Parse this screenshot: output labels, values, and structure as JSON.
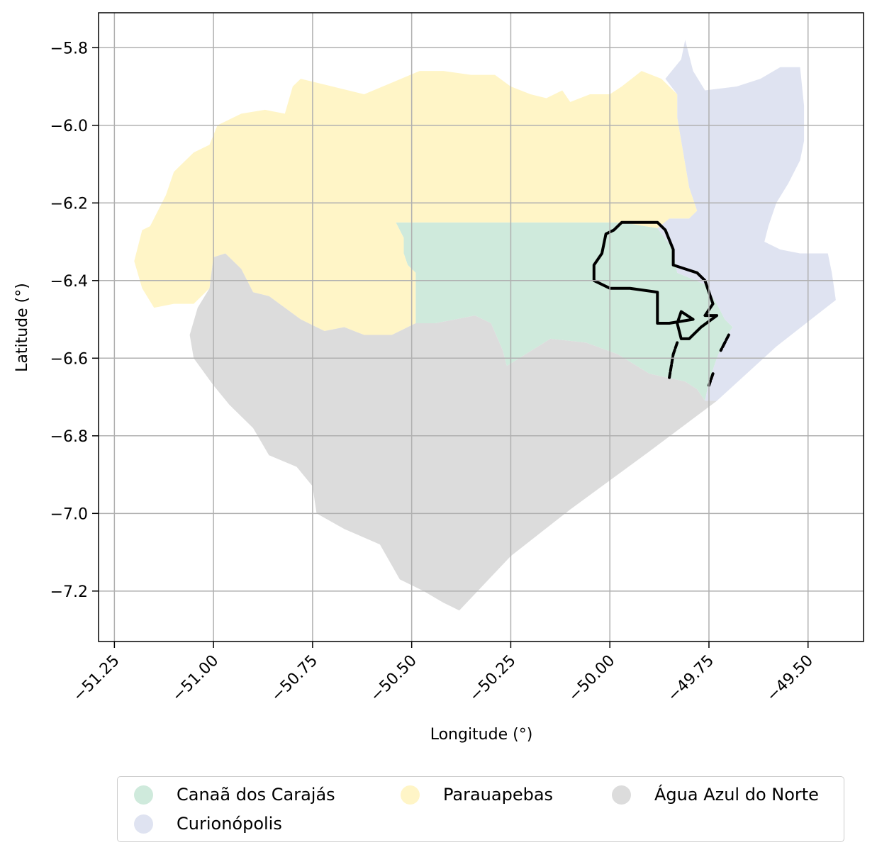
{
  "chart_data": {
    "type": "map",
    "xlabel": "Longitude (°)",
    "ylabel": "Latitude (°)",
    "xlim": [
      -51.29,
      -49.36
    ],
    "ylim": [
      -7.33,
      -5.71
    ],
    "xticks": [
      -51.25,
      -51.0,
      -50.75,
      -50.5,
      -50.25,
      -50.0,
      -49.75,
      -49.5
    ],
    "xtick_labels": [
      "−51.25",
      "−51.00",
      "−50.75",
      "−50.50",
      "−50.25",
      "−50.00",
      "−49.75",
      "−49.50"
    ],
    "yticks": [
      -5.8,
      -6.0,
      -6.2,
      -6.4,
      -6.6,
      -6.8,
      -7.0,
      -7.2
    ],
    "ytick_labels": [
      "−5.8",
      "−6.0",
      "−6.2",
      "−6.4",
      "−6.6",
      "−6.8",
      "−7.0",
      "−7.2"
    ],
    "grid": true,
    "legend_position": "bottom-outside",
    "regions": [
      {
        "name": "Canaã dos Carajás",
        "color": "#cfeadc",
        "polygon": [
          [
            -50.54,
            -6.25
          ],
          [
            -49.97,
            -6.25
          ],
          [
            -49.88,
            -6.265
          ],
          [
            -49.84,
            -6.32
          ],
          [
            -49.83,
            -6.38
          ],
          [
            -49.76,
            -6.41
          ],
          [
            -49.73,
            -6.46
          ],
          [
            -49.71,
            -6.5
          ],
          [
            -49.69,
            -6.52
          ],
          [
            -49.71,
            -6.55
          ],
          [
            -49.73,
            -6.6
          ],
          [
            -49.75,
            -6.66
          ],
          [
            -49.76,
            -6.71
          ],
          [
            -49.78,
            -6.68
          ],
          [
            -49.81,
            -6.66
          ],
          [
            -49.9,
            -6.64
          ],
          [
            -49.98,
            -6.59
          ],
          [
            -50.06,
            -6.56
          ],
          [
            -50.15,
            -6.55
          ],
          [
            -50.26,
            -6.62
          ],
          [
            -50.27,
            -6.58
          ],
          [
            -50.3,
            -6.51
          ],
          [
            -50.34,
            -6.49
          ],
          [
            -50.44,
            -6.51
          ],
          [
            -50.49,
            -6.51
          ],
          [
            -50.49,
            -6.45
          ],
          [
            -50.49,
            -6.38
          ],
          [
            -50.51,
            -6.36
          ],
          [
            -50.52,
            -6.33
          ],
          [
            -50.52,
            -6.29
          ]
        ]
      },
      {
        "name": "Curionópolis",
        "color": "#dfe3f1",
        "polygon": [
          [
            -49.86,
            -5.88
          ],
          [
            -49.82,
            -5.83
          ],
          [
            -49.81,
            -5.78
          ],
          [
            -49.79,
            -5.86
          ],
          [
            -49.76,
            -5.91
          ],
          [
            -49.68,
            -5.9
          ],
          [
            -49.62,
            -5.88
          ],
          [
            -49.57,
            -5.85
          ],
          [
            -49.52,
            -5.85
          ],
          [
            -49.51,
            -5.95
          ],
          [
            -49.51,
            -6.04
          ],
          [
            -49.52,
            -6.09
          ],
          [
            -49.55,
            -6.15
          ],
          [
            -49.58,
            -6.2
          ],
          [
            -49.6,
            -6.26
          ],
          [
            -49.61,
            -6.3
          ],
          [
            -49.57,
            -6.32
          ],
          [
            -49.52,
            -6.33
          ],
          [
            -49.45,
            -6.33
          ],
          [
            -49.44,
            -6.38
          ],
          [
            -49.43,
            -6.45
          ],
          [
            -49.58,
            -6.57
          ],
          [
            -49.73,
            -6.71
          ],
          [
            -49.76,
            -6.71
          ],
          [
            -49.75,
            -6.66
          ],
          [
            -49.73,
            -6.6
          ],
          [
            -49.71,
            -6.55
          ],
          [
            -49.69,
            -6.52
          ],
          [
            -49.71,
            -6.5
          ],
          [
            -49.73,
            -6.46
          ],
          [
            -49.76,
            -6.41
          ],
          [
            -49.83,
            -6.38
          ],
          [
            -49.84,
            -6.32
          ],
          [
            -49.88,
            -6.265
          ],
          [
            -49.85,
            -6.24
          ],
          [
            -49.8,
            -6.24
          ],
          [
            -49.78,
            -6.22
          ],
          [
            -49.8,
            -6.16
          ],
          [
            -49.81,
            -6.1
          ],
          [
            -49.82,
            -6.04
          ],
          [
            -49.83,
            -5.98
          ],
          [
            -49.83,
            -5.92
          ]
        ]
      },
      {
        "name": "Parauapebas",
        "color": "#fff5c7",
        "polygon": [
          [
            -51.18,
            -6.27
          ],
          [
            -51.16,
            -6.26
          ],
          [
            -51.12,
            -6.18
          ],
          [
            -51.1,
            -6.12
          ],
          [
            -51.05,
            -6.07
          ],
          [
            -51.01,
            -6.05
          ],
          [
            -50.99,
            -6.0
          ],
          [
            -50.93,
            -5.97
          ],
          [
            -50.87,
            -5.96
          ],
          [
            -50.82,
            -5.97
          ],
          [
            -50.8,
            -5.9
          ],
          [
            -50.78,
            -5.88
          ],
          [
            -50.7,
            -5.9
          ],
          [
            -50.62,
            -5.92
          ],
          [
            -50.55,
            -5.89
          ],
          [
            -50.48,
            -5.86
          ],
          [
            -50.42,
            -5.86
          ],
          [
            -50.35,
            -5.87
          ],
          [
            -50.29,
            -5.87
          ],
          [
            -50.25,
            -5.9
          ],
          [
            -50.2,
            -5.92
          ],
          [
            -50.16,
            -5.93
          ],
          [
            -50.12,
            -5.91
          ],
          [
            -50.1,
            -5.94
          ],
          [
            -50.05,
            -5.92
          ],
          [
            -50.0,
            -5.92
          ],
          [
            -49.97,
            -5.9
          ],
          [
            -49.92,
            -5.86
          ],
          [
            -49.87,
            -5.88
          ],
          [
            -49.83,
            -5.92
          ],
          [
            -49.83,
            -5.98
          ],
          [
            -49.82,
            -6.04
          ],
          [
            -49.81,
            -6.1
          ],
          [
            -49.8,
            -6.16
          ],
          [
            -49.78,
            -6.22
          ],
          [
            -49.8,
            -6.24
          ],
          [
            -49.85,
            -6.24
          ],
          [
            -49.88,
            -6.265
          ],
          [
            -49.97,
            -6.25
          ],
          [
            -50.54,
            -6.25
          ],
          [
            -50.52,
            -6.29
          ],
          [
            -50.52,
            -6.33
          ],
          [
            -50.51,
            -6.36
          ],
          [
            -50.49,
            -6.38
          ],
          [
            -50.49,
            -6.45
          ],
          [
            -50.49,
            -6.51
          ],
          [
            -50.55,
            -6.54
          ],
          [
            -50.62,
            -6.54
          ],
          [
            -50.67,
            -6.52
          ],
          [
            -50.72,
            -6.53
          ],
          [
            -50.78,
            -6.5
          ],
          [
            -50.82,
            -6.47
          ],
          [
            -50.86,
            -6.44
          ],
          [
            -50.9,
            -6.43
          ],
          [
            -50.93,
            -6.37
          ],
          [
            -50.97,
            -6.33
          ],
          [
            -51.0,
            -6.34
          ],
          [
            -51.01,
            -6.42
          ],
          [
            -51.05,
            -6.46
          ],
          [
            -51.1,
            -6.46
          ],
          [
            -51.15,
            -6.47
          ],
          [
            -51.18,
            -6.42
          ],
          [
            -51.2,
            -6.35
          ]
        ]
      },
      {
        "name": "Água Azul do Norte",
        "color": "#dcdcdc",
        "polygon": [
          [
            -51.0,
            -6.34
          ],
          [
            -50.97,
            -6.33
          ],
          [
            -50.93,
            -6.37
          ],
          [
            -50.9,
            -6.43
          ],
          [
            -50.86,
            -6.44
          ],
          [
            -50.82,
            -6.47
          ],
          [
            -50.78,
            -6.5
          ],
          [
            -50.72,
            -6.53
          ],
          [
            -50.67,
            -6.52
          ],
          [
            -50.62,
            -6.54
          ],
          [
            -50.55,
            -6.54
          ],
          [
            -50.49,
            -6.51
          ],
          [
            -50.44,
            -6.51
          ],
          [
            -50.34,
            -6.49
          ],
          [
            -50.3,
            -6.51
          ],
          [
            -50.27,
            -6.58
          ],
          [
            -50.26,
            -6.62
          ],
          [
            -50.15,
            -6.55
          ],
          [
            -50.06,
            -6.56
          ],
          [
            -49.98,
            -6.59
          ],
          [
            -49.9,
            -6.64
          ],
          [
            -49.81,
            -6.66
          ],
          [
            -49.78,
            -6.68
          ],
          [
            -49.76,
            -6.71
          ],
          [
            -49.73,
            -6.71
          ],
          [
            -49.9,
            -6.84
          ],
          [
            -50.1,
            -6.99
          ],
          [
            -50.25,
            -7.11
          ],
          [
            -50.38,
            -7.25
          ],
          [
            -50.42,
            -7.23
          ],
          [
            -50.47,
            -7.2
          ],
          [
            -50.53,
            -7.17
          ],
          [
            -50.58,
            -7.08
          ],
          [
            -50.67,
            -7.04
          ],
          [
            -50.74,
            -7.0
          ],
          [
            -50.75,
            -6.93
          ],
          [
            -50.79,
            -6.88
          ],
          [
            -50.86,
            -6.85
          ],
          [
            -50.9,
            -6.78
          ],
          [
            -50.96,
            -6.72
          ],
          [
            -51.0,
            -6.67
          ],
          [
            -51.05,
            -6.6
          ],
          [
            -51.06,
            -6.54
          ],
          [
            -51.04,
            -6.47
          ],
          [
            -51.01,
            -6.42
          ]
        ]
      }
    ],
    "boundary_outline": {
      "color": "#000000",
      "points": [
        [
          -49.97,
          -6.25
        ],
        [
          -49.88,
          -6.25
        ],
        [
          -49.86,
          -6.27
        ],
        [
          -49.84,
          -6.32
        ],
        [
          -49.84,
          -6.36
        ],
        [
          -49.81,
          -6.37
        ],
        [
          -49.78,
          -6.38
        ],
        [
          -49.76,
          -6.4
        ],
        [
          -49.75,
          -6.43
        ],
        [
          -49.74,
          -6.46
        ],
        [
          -49.76,
          -6.49
        ],
        [
          -49.73,
          -6.49
        ],
        [
          -49.77,
          -6.52
        ],
        [
          -49.8,
          -6.55
        ],
        [
          -49.82,
          -6.55
        ],
        [
          -49.83,
          -6.51
        ],
        [
          -49.82,
          -6.48
        ],
        [
          -49.79,
          -6.5
        ],
        [
          -49.85,
          -6.51
        ],
        [
          -49.88,
          -6.51
        ],
        [
          -49.88,
          -6.43
        ],
        [
          -49.95,
          -6.42
        ],
        [
          -50.0,
          -6.42
        ],
        [
          -50.04,
          -6.4
        ],
        [
          -50.04,
          -6.36
        ],
        [
          -50.02,
          -6.33
        ],
        [
          -50.01,
          -6.28
        ],
        [
          -49.99,
          -6.27
        ]
      ]
    },
    "boundary_fragments": [
      [
        [
          -49.83,
          -6.56
        ],
        [
          -49.84,
          -6.59
        ],
        [
          -49.85,
          -6.65
        ]
      ],
      [
        [
          -49.74,
          -6.64
        ],
        [
          -49.75,
          -6.67
        ]
      ],
      [
        [
          -49.7,
          -6.54
        ],
        [
          -49.72,
          -6.58
        ]
      ]
    ]
  },
  "legend": {
    "items": [
      {
        "label": "Canaã dos Carajás",
        "color": "#cfeadc"
      },
      {
        "label": "Curionópolis",
        "color": "#dfe3f1"
      },
      {
        "label": "Parauapebas",
        "color": "#fff5c7"
      },
      {
        "label": "Água Azul do Norte",
        "color": "#dcdcdc"
      }
    ]
  }
}
